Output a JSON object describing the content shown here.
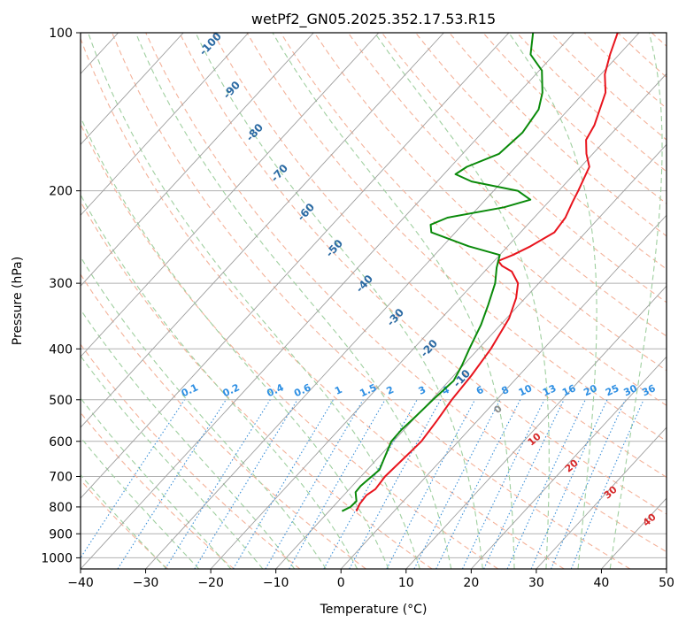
{
  "chart_data": {
    "type": "skew-t log-p",
    "title": "wetPf2_GN05.2025.352.17.53.R15",
    "xlabel": "Temperature (°C)",
    "ylabel": "Pressure (hPa)",
    "xlim": [
      -40,
      50
    ],
    "ylim": [
      1050,
      100
    ],
    "y_scale": "log",
    "x_ticks": [
      -40,
      -30,
      -20,
      -10,
      0,
      10,
      20,
      30,
      40,
      50
    ],
    "y_ticks": [
      100,
      200,
      300,
      400,
      500,
      600,
      700,
      800,
      900,
      1000
    ],
    "grid": true,
    "colors": {
      "temperature": "#e8141d",
      "dewpoint": "#0a8a0a",
      "isotherm": "#9e9e9e",
      "dry_adiabat": "#f4b29a",
      "moist_adiabat": "#9fcf9f",
      "mixing_ratio": "#3a8fd8",
      "dry_adiabat_label": "#d62728",
      "moist_label": "#8c8c8c"
    },
    "series": [
      {
        "role": "temperature",
        "points": [
          {
            "p": 815,
            "t": -5.8
          },
          {
            "p": 790,
            "t": -6.3
          },
          {
            "p": 760,
            "t": -6.5
          },
          {
            "p": 740,
            "t": -6.0
          },
          {
            "p": 700,
            "t": -6.3
          },
          {
            "p": 650,
            "t": -6.0
          },
          {
            "p": 600,
            "t": -5.7
          },
          {
            "p": 550,
            "t": -6.2
          },
          {
            "p": 500,
            "t": -6.9
          },
          {
            "p": 450,
            "t": -7.3
          },
          {
            "p": 400,
            "t": -8.1
          },
          {
            "p": 350,
            "t": -9.6
          },
          {
            "p": 320,
            "t": -11.4
          },
          {
            "p": 300,
            "t": -13.2
          },
          {
            "p": 285,
            "t": -15.8
          },
          {
            "p": 278,
            "t": -18.1
          },
          {
            "p": 272,
            "t": -19.4
          },
          {
            "p": 265,
            "t": -18.0
          },
          {
            "p": 255,
            "t": -16.5
          },
          {
            "p": 240,
            "t": -14.8
          },
          {
            "p": 225,
            "t": -15.2
          },
          {
            "p": 210,
            "t": -16.3
          },
          {
            "p": 200,
            "t": -17.0
          },
          {
            "p": 180,
            "t": -18.7
          },
          {
            "p": 170,
            "t": -21.0
          },
          {
            "p": 160,
            "t": -23.0
          },
          {
            "p": 150,
            "t": -23.8
          },
          {
            "p": 130,
            "t": -26.7
          },
          {
            "p": 120,
            "t": -29.4
          },
          {
            "p": 110,
            "t": -31.4
          },
          {
            "p": 100,
            "t": -33.3
          }
        ]
      },
      {
        "role": "dewpoint",
        "points": [
          {
            "p": 815,
            "t": -8.0
          },
          {
            "p": 800,
            "t": -7.3
          },
          {
            "p": 780,
            "t": -7.2
          },
          {
            "p": 750,
            "t": -8.6
          },
          {
            "p": 730,
            "t": -8.7
          },
          {
            "p": 710,
            "t": -8.5
          },
          {
            "p": 680,
            "t": -8.1
          },
          {
            "p": 650,
            "t": -8.9
          },
          {
            "p": 600,
            "t": -10.3
          },
          {
            "p": 570,
            "t": -10.4
          },
          {
            "p": 540,
            "t": -10.1
          },
          {
            "p": 500,
            "t": -9.8
          },
          {
            "p": 460,
            "t": -9.3
          },
          {
            "p": 430,
            "t": -10.2
          },
          {
            "p": 400,
            "t": -11.4
          },
          {
            "p": 360,
            "t": -13.0
          },
          {
            "p": 330,
            "t": -14.7
          },
          {
            "p": 300,
            "t": -16.7
          },
          {
            "p": 280,
            "t": -18.7
          },
          {
            "p": 265,
            "t": -20.0
          },
          {
            "p": 255,
            "t": -26.0
          },
          {
            "p": 240,
            "t": -33.7
          },
          {
            "p": 232,
            "t": -34.9
          },
          {
            "p": 225,
            "t": -33.3
          },
          {
            "p": 215,
            "t": -26.1
          },
          {
            "p": 208,
            "t": -23.1
          },
          {
            "p": 200,
            "t": -26.3
          },
          {
            "p": 192,
            "t": -34.7
          },
          {
            "p": 186,
            "t": -38.2
          },
          {
            "p": 180,
            "t": -37.5
          },
          {
            "p": 170,
            "t": -34.4
          },
          {
            "p": 155,
            "t": -33.8
          },
          {
            "p": 140,
            "t": -34.6
          },
          {
            "p": 130,
            "t": -36.4
          },
          {
            "p": 118,
            "t": -39.6
          },
          {
            "p": 110,
            "t": -43.6
          },
          {
            "p": 100,
            "t": -46.3
          }
        ]
      }
    ],
    "dry_adiabat_labels": [
      "10",
      "20",
      "30",
      "40"
    ],
    "moist_adiabat_labels": [
      "-100",
      "-90",
      "-80",
      "-70",
      "-60",
      "-50",
      "-40",
      "-30",
      "-20",
      "-10"
    ],
    "moist_zero_label": "0",
    "mixing_ratio_labels": [
      "0.1",
      "0.2",
      "0.4",
      "0.6",
      "1",
      "1.5",
      "2",
      "3",
      "4",
      "6",
      "8",
      "10",
      "13",
      "16",
      "20",
      "25",
      "30",
      "36"
    ]
  }
}
